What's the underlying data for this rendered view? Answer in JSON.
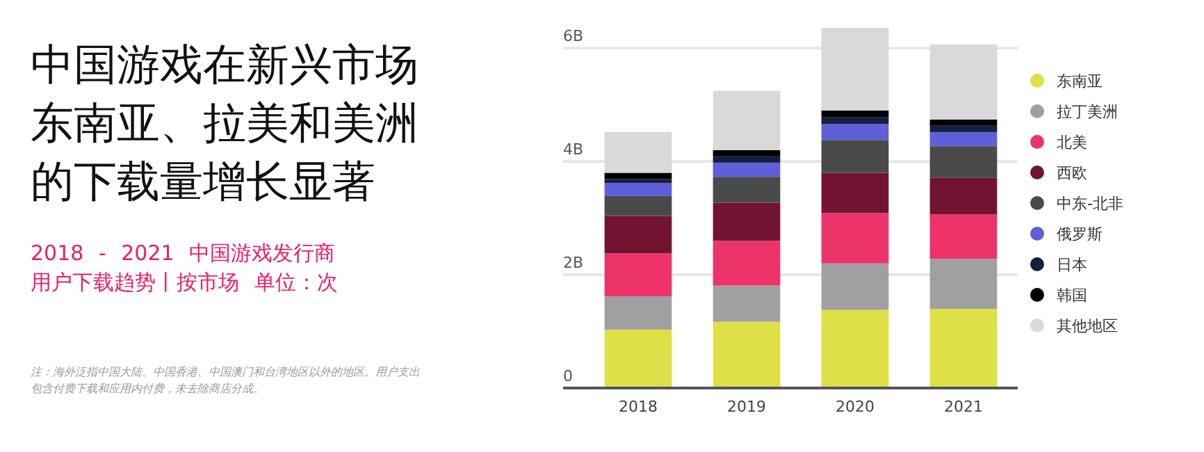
{
  "chart_data": {
    "type": "bar",
    "stacked": true,
    "title": "中国游戏在新兴市场东南亚、拉美和美洲的下载量增长显著",
    "subtitle": "2018 - 2021 中国游戏发行商用户下载趋势丨按市场 单位：次",
    "annotations": [
      "注：海外泛指中国大陆、中国香港、中国澳门和台湾地区以外的地区。用户支出包含付费下载和应用内付费，未去除商店分成。"
    ],
    "categories": [
      "2018",
      "2019",
      "2020",
      "2021"
    ],
    "series": [
      {
        "name": "东南亚",
        "color": "#dde046",
        "values": [
          1.03,
          1.17,
          1.38,
          1.4
        ]
      },
      {
        "name": "拉丁美洲",
        "color": "#a0a0a0",
        "values": [
          0.59,
          0.64,
          0.82,
          0.88
        ]
      },
      {
        "name": "北美",
        "color": "#ec346a",
        "values": [
          0.76,
          0.79,
          0.89,
          0.79
        ]
      },
      {
        "name": "西欧",
        "color": "#721431",
        "values": [
          0.66,
          0.67,
          0.71,
          0.64
        ]
      },
      {
        "name": "中东-北非",
        "color": "#4a4a4a",
        "values": [
          0.35,
          0.46,
          0.58,
          0.56
        ]
      },
      {
        "name": "俄罗斯",
        "color": "#5f5fd8",
        "values": [
          0.23,
          0.25,
          0.28,
          0.25
        ]
      },
      {
        "name": "日本",
        "color": "#142040",
        "values": [
          0.07,
          0.12,
          0.12,
          0.12
        ]
      },
      {
        "name": "韩国",
        "color": "#000000",
        "values": [
          0.11,
          0.1,
          0.12,
          0.1
        ]
      },
      {
        "name": "其他地区",
        "color": "#d9d9d9",
        "values": [
          0.72,
          1.05,
          1.46,
          1.33
        ]
      }
    ],
    "yticks": [
      0,
      {
        "value": 2,
        "label": "2B"
      },
      {
        "value": 4,
        "label": "4B"
      },
      {
        "value": 6,
        "label": "6B"
      }
    ],
    "ylim": [
      0,
      6.36
    ],
    "grid": "y",
    "legend": "right"
  }
}
